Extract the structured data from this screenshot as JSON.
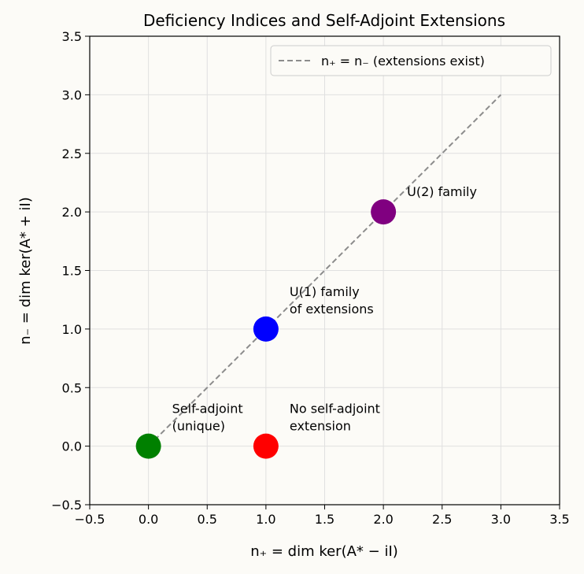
{
  "chart_data": {
    "type": "scatter",
    "title": "Deficiency Indices and Self-Adjoint Extensions",
    "x_label": "n₊ = dim ker(A* − iI)",
    "y_label": "n₋ = dim ker(A* + iI)",
    "xlim": [
      -0.5,
      3.5
    ],
    "ylim": [
      -0.5,
      3.5
    ],
    "xticks": [
      {
        "value": -0.5,
        "label": "−0.5"
      },
      {
        "value": 0,
        "label": "0.0"
      },
      0.5,
      {
        "value": 1,
        "label": "1.0"
      },
      1.5,
      {
        "value": 2,
        "label": "2.0"
      },
      2.5,
      {
        "value": 3,
        "label": "3.0"
      },
      3.5
    ],
    "yticks": [
      {
        "value": -0.5,
        "label": "−0.5"
      },
      {
        "value": 0,
        "label": "0.0"
      },
      0.5,
      {
        "value": 1,
        "label": "1.0"
      },
      1.5,
      {
        "value": 2,
        "label": "2.0"
      },
      2.5,
      {
        "value": 3,
        "label": "3.0"
      },
      3.5
    ],
    "grid": true,
    "legend": "upper right",
    "series": [
      {
        "name": "n₊ = n₋ (extensions exist)",
        "color": "#8c8c8c",
        "dashed": true,
        "x": [
          0,
          3
        ],
        "values": [
          0,
          3
        ]
      }
    ],
    "points": [
      {
        "x": 0,
        "y": 0,
        "color": "green",
        "label": [
          "Self-adjoint",
          "(unique)"
        ]
      },
      {
        "x": 1,
        "y": 1,
        "color": "blue",
        "label": [
          "U(1) family",
          "of extensions"
        ]
      },
      {
        "x": 2,
        "y": 2,
        "color": "purple",
        "label": [
          "U(2) family"
        ]
      },
      {
        "x": 1,
        "y": 0,
        "color": "red",
        "label": [
          "No self-adjoint",
          "extension"
        ]
      }
    ]
  }
}
